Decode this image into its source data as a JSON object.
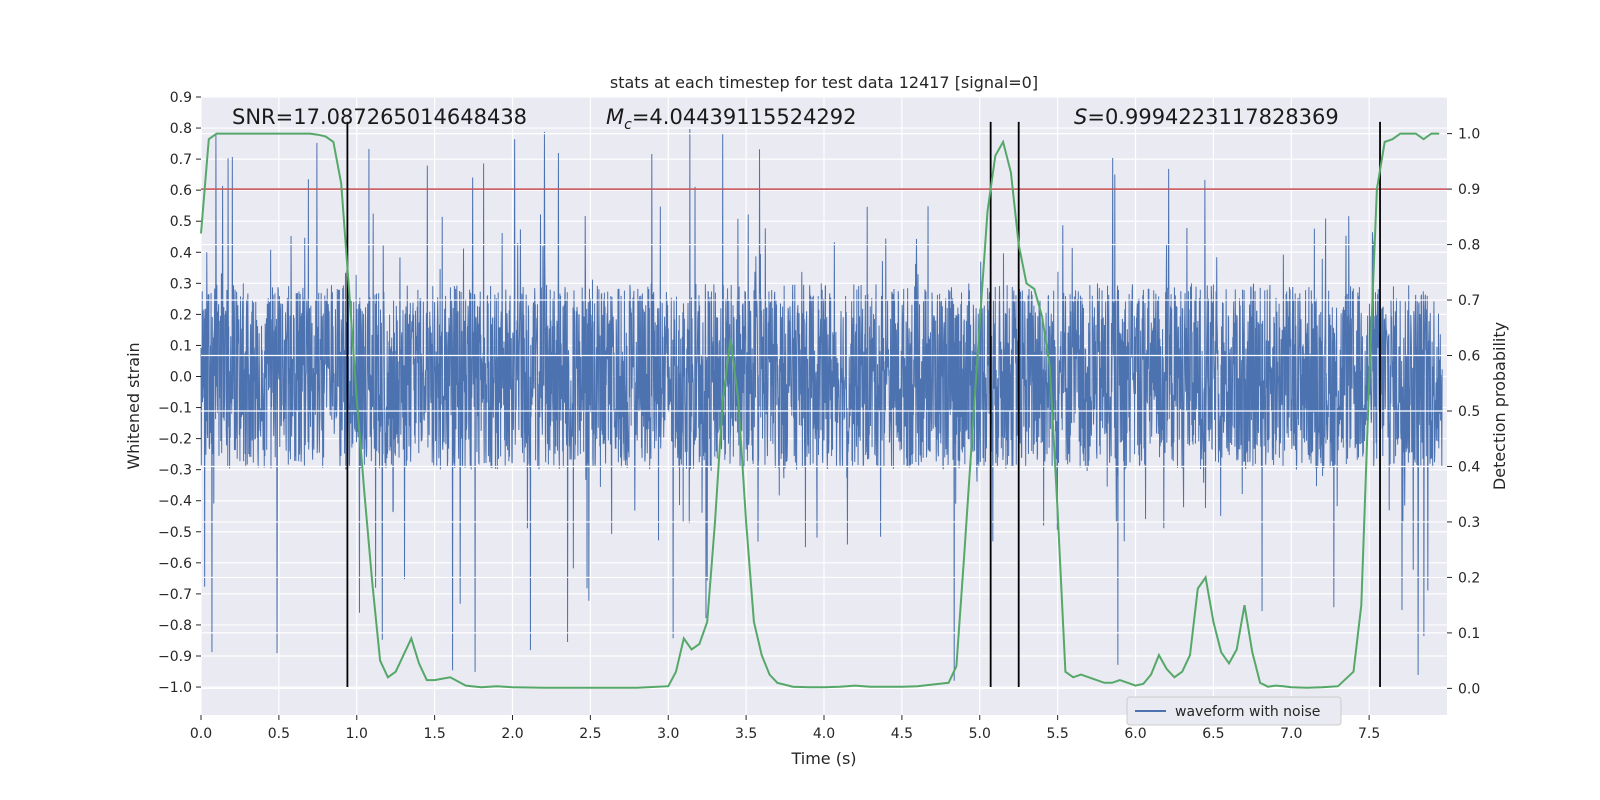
{
  "chart_data": {
    "type": "line",
    "title": "stats at each timestep for test data 12417 [signal=0]",
    "xlabel": "Time (s)",
    "ylabel": "Whitened strain",
    "y2label": "Detection probability",
    "xlim": [
      0.0,
      8.0
    ],
    "ylim": [
      -1.09,
      0.9
    ],
    "y2lim": [
      -0.048,
      1.066
    ],
    "x_ticks": [
      "0.0",
      "0.5",
      "1.0",
      "1.5",
      "2.0",
      "2.5",
      "3.0",
      "3.5",
      "4.0",
      "4.5",
      "5.0",
      "5.5",
      "6.0",
      "6.5",
      "7.0",
      "7.5"
    ],
    "y_ticks": [
      "0.9",
      "0.8",
      "0.7",
      "0.6",
      "0.5",
      "0.4",
      "0.3",
      "0.2",
      "0.1",
      "0.0",
      "−0.1",
      "−0.2",
      "−0.3",
      "−0.4",
      "−0.5",
      "−0.6",
      "−0.7",
      "−0.8",
      "−0.9",
      "−1.0"
    ],
    "y2_ticks": [
      "1.0",
      "0.9",
      "0.8",
      "0.7",
      "0.6",
      "0.5",
      "0.4",
      "0.3",
      "0.2",
      "0.1",
      "0.0"
    ],
    "grid": true,
    "legend_position": "lower-right",
    "series": [
      {
        "name": "waveform with noise",
        "axis": "left",
        "color": "#4c72b0",
        "description_values": "noise roughly within ±0.3 with spikes reaching about ±0.8",
        "sample_rate": 512,
        "amplitude_core": 0.3,
        "spike_range": [
          -1.0,
          0.81
        ]
      },
      {
        "name": "",
        "axis": "right",
        "color": "#55a868",
        "x": [
          0.0,
          0.05,
          0.1,
          0.15,
          0.2,
          0.3,
          0.4,
          0.5,
          0.6,
          0.7,
          0.75,
          0.8,
          0.85,
          0.9,
          0.95,
          1.0,
          1.05,
          1.1,
          1.15,
          1.2,
          1.25,
          1.3,
          1.35,
          1.4,
          1.45,
          1.5,
          1.6,
          1.7,
          1.8,
          1.9,
          2.0,
          2.2,
          2.4,
          2.6,
          2.8,
          3.0,
          3.05,
          3.1,
          3.15,
          3.2,
          3.25,
          3.3,
          3.35,
          3.4,
          3.45,
          3.5,
          3.55,
          3.6,
          3.65,
          3.7,
          3.8,
          3.9,
          4.0,
          4.1,
          4.2,
          4.3,
          4.4,
          4.5,
          4.6,
          4.7,
          4.8,
          4.85,
          4.9,
          4.95,
          5.0,
          5.05,
          5.1,
          5.15,
          5.2,
          5.25,
          5.3,
          5.35,
          5.4,
          5.45,
          5.5,
          5.55,
          5.6,
          5.65,
          5.7,
          5.75,
          5.8,
          5.85,
          5.9,
          5.95,
          6.0,
          6.05,
          6.1,
          6.15,
          6.2,
          6.25,
          6.3,
          6.35,
          6.4,
          6.45,
          6.5,
          6.55,
          6.6,
          6.65,
          6.7,
          6.75,
          6.8,
          6.85,
          6.9,
          6.95,
          7.0,
          7.1,
          7.2,
          7.3,
          7.4,
          7.45,
          7.5,
          7.55,
          7.6,
          7.65,
          7.7,
          7.75,
          7.8,
          7.85,
          7.9,
          7.95
        ],
        "y": [
          0.82,
          0.99,
          1.0,
          1.0,
          1.0,
          1.0,
          1.0,
          1.0,
          1.0,
          1.0,
          0.998,
          0.995,
          0.985,
          0.91,
          0.72,
          0.52,
          0.35,
          0.19,
          0.05,
          0.02,
          0.03,
          0.06,
          0.09,
          0.045,
          0.015,
          0.015,
          0.02,
          0.005,
          0.002,
          0.004,
          0.002,
          0.001,
          0.001,
          0.001,
          0.001,
          0.004,
          0.03,
          0.09,
          0.07,
          0.08,
          0.12,
          0.3,
          0.52,
          0.63,
          0.52,
          0.3,
          0.12,
          0.06,
          0.025,
          0.01,
          0.003,
          0.002,
          0.002,
          0.003,
          0.005,
          0.003,
          0.003,
          0.003,
          0.004,
          0.007,
          0.01,
          0.04,
          0.24,
          0.45,
          0.66,
          0.86,
          0.96,
          0.985,
          0.93,
          0.8,
          0.73,
          0.72,
          0.67,
          0.58,
          0.32,
          0.03,
          0.02,
          0.025,
          0.02,
          0.015,
          0.01,
          0.01,
          0.015,
          0.01,
          0.005,
          0.008,
          0.025,
          0.06,
          0.035,
          0.02,
          0.03,
          0.06,
          0.18,
          0.2,
          0.12,
          0.065,
          0.045,
          0.07,
          0.15,
          0.065,
          0.01,
          0.003,
          0.005,
          0.004,
          0.002,
          0.001,
          0.002,
          0.004,
          0.03,
          0.15,
          0.55,
          0.9,
          0.985,
          0.99,
          1.0,
          1.0,
          1.0,
          0.99,
          1.0,
          1.0
        ]
      }
    ],
    "threshold": {
      "axis": "right",
      "value": 0.9,
      "color": "#c44e52"
    },
    "vertical_lines": [
      0.94,
      5.07,
      5.25,
      7.57
    ],
    "vertical_lines_range_y": [
      -1.0,
      0.82
    ],
    "annotations": [
      {
        "text": "SNR=17.087265014648438",
        "x": 0.2
      },
      {
        "text_parts": [
          "M",
          "c",
          "=4.04439115524292"
        ],
        "x": 2.6
      },
      {
        "text_parts": [
          "S",
          "=0.9994223117828369"
        ],
        "x": 5.6
      }
    ]
  }
}
